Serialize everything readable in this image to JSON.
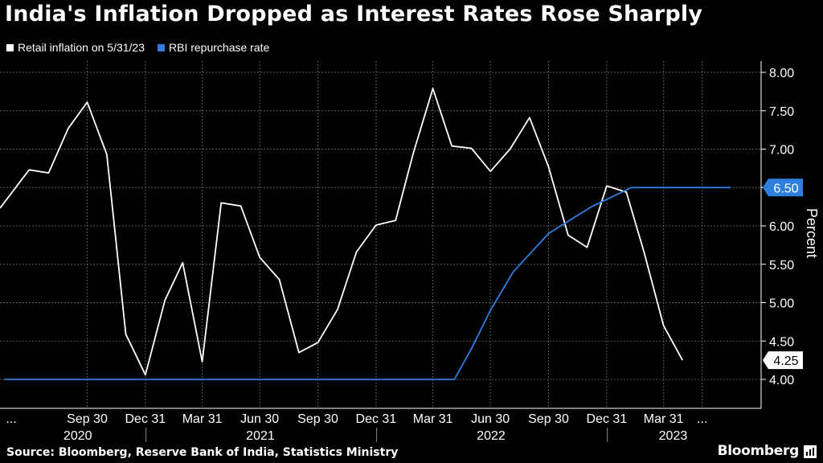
{
  "colors": {
    "background": "#000000",
    "inflation": "#ffffff",
    "repo": "#2f7fe0",
    "grid": "#5a5a5a"
  },
  "header": {
    "title": "India's Inflation Dropped as Interest Rates Rose Sharply"
  },
  "footer": {
    "source": "Source: Bloomberg, Reserve Bank of India, Statistics Ministry",
    "brand": "Bloomberg"
  },
  "chart_data": {
    "type": "line",
    "ylabel": "Percent",
    "ylim": [
      3.7,
      8.05
    ],
    "yticks": [
      "8.00",
      "7.50",
      "7.00",
      "6.50",
      "6.00",
      "5.50",
      "5.00",
      "4.50",
      "4.00"
    ],
    "ytick_values": [
      8.0,
      7.5,
      7.0,
      6.5,
      6.0,
      5.5,
      5.0,
      4.5,
      4.0
    ],
    "xlim": [
      "2020-05-15",
      "2023-07-15"
    ],
    "grid": true,
    "legend_position": "top-left",
    "x_ticks": [
      {
        "label": "...",
        "date": "2020-05-10"
      },
      {
        "label": "Sep 30",
        "date": "2020-09-30"
      },
      {
        "label": "Dec 31",
        "date": "2020-12-31"
      },
      {
        "label": "Mar 31",
        "date": "2021-03-31"
      },
      {
        "label": "Jun 30",
        "date": "2021-06-30"
      },
      {
        "label": "Sep 30",
        "date": "2021-09-30"
      },
      {
        "label": "Dec 31",
        "date": "2021-12-31"
      },
      {
        "label": "Mar 31",
        "date": "2022-03-31"
      },
      {
        "label": "Jun 30",
        "date": "2022-06-30"
      },
      {
        "label": "Sep 30",
        "date": "2022-09-30"
      },
      {
        "label": "Dec 31",
        "date": "2022-12-31"
      },
      {
        "label": "Mar 31",
        "date": "2023-03-31"
      },
      {
        "label": "...",
        "date": "2023-05-31"
      }
    ],
    "year_labels": [
      {
        "label": "2020",
        "date": "2020-09-15"
      },
      {
        "label": "2021",
        "date": "2021-07-01"
      },
      {
        "label": "2022",
        "date": "2022-07-01"
      },
      {
        "label": "2023",
        "date": "2023-04-15"
      }
    ],
    "year_separators": [
      "2021-01-01",
      "2022-01-01",
      "2023-01-01"
    ],
    "series": [
      {
        "name": "Retail inflation on 5/31/23",
        "color": "#ffffff",
        "end_label": "4.25",
        "points": [
          {
            "x": "2020-05-15",
            "y": 6.23
          },
          {
            "x": "2020-06-30",
            "y": 6.73
          },
          {
            "x": "2020-07-31",
            "y": 6.69
          },
          {
            "x": "2020-08-31",
            "y": 7.27
          },
          {
            "x": "2020-09-30",
            "y": 7.61
          },
          {
            "x": "2020-10-31",
            "y": 6.93
          },
          {
            "x": "2020-11-30",
            "y": 4.59
          },
          {
            "x": "2020-12-31",
            "y": 4.06
          },
          {
            "x": "2021-01-31",
            "y": 5.03
          },
          {
            "x": "2021-02-28",
            "y": 5.52
          },
          {
            "x": "2021-03-31",
            "y": 4.23
          },
          {
            "x": "2021-04-30",
            "y": 6.3
          },
          {
            "x": "2021-05-31",
            "y": 6.26
          },
          {
            "x": "2021-06-30",
            "y": 5.59
          },
          {
            "x": "2021-07-31",
            "y": 5.3
          },
          {
            "x": "2021-08-31",
            "y": 4.35
          },
          {
            "x": "2021-09-30",
            "y": 4.48
          },
          {
            "x": "2021-10-31",
            "y": 4.91
          },
          {
            "x": "2021-11-30",
            "y": 5.66
          },
          {
            "x": "2021-12-31",
            "y": 6.01
          },
          {
            "x": "2022-01-31",
            "y": 6.07
          },
          {
            "x": "2022-02-28",
            "y": 6.95
          },
          {
            "x": "2022-03-31",
            "y": 7.79
          },
          {
            "x": "2022-04-30",
            "y": 7.04
          },
          {
            "x": "2022-05-31",
            "y": 7.01
          },
          {
            "x": "2022-06-30",
            "y": 6.71
          },
          {
            "x": "2022-07-31",
            "y": 7.0
          },
          {
            "x": "2022-08-31",
            "y": 7.41
          },
          {
            "x": "2022-09-30",
            "y": 6.77
          },
          {
            "x": "2022-10-31",
            "y": 5.88
          },
          {
            "x": "2022-11-30",
            "y": 5.72
          },
          {
            "x": "2022-12-31",
            "y": 6.52
          },
          {
            "x": "2023-01-31",
            "y": 6.44
          },
          {
            "x": "2023-02-28",
            "y": 5.66
          },
          {
            "x": "2023-03-31",
            "y": 4.7
          },
          {
            "x": "2023-04-30",
            "y": 4.25
          }
        ]
      },
      {
        "name": "RBI repurchase rate",
        "color": "#2f7fe0",
        "end_label": "6.50",
        "points": [
          {
            "x": "2020-05-22",
            "y": 4.0
          },
          {
            "x": "2022-05-04",
            "y": 4.0
          },
          {
            "x": "2022-05-31",
            "y": 4.4
          },
          {
            "x": "2022-06-30",
            "y": 4.9
          },
          {
            "x": "2022-08-05",
            "y": 5.4
          },
          {
            "x": "2022-09-30",
            "y": 5.9
          },
          {
            "x": "2022-12-07",
            "y": 6.25
          },
          {
            "x": "2023-02-08",
            "y": 6.5
          },
          {
            "x": "2023-07-15",
            "y": 6.5
          }
        ]
      }
    ]
  }
}
